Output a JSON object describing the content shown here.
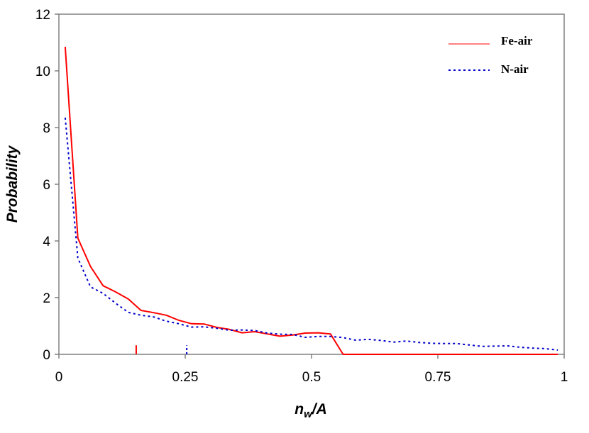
{
  "chart_data": {
    "type": "line",
    "xlabel": {
      "main": "n",
      "sub": "w",
      "rest": "/A"
    },
    "ylabel": "Probability",
    "xlim": [
      0,
      1
    ],
    "ylim": [
      0,
      12
    ],
    "xticks": [
      0,
      0.25,
      0.5,
      0.75,
      1
    ],
    "xtick_labels": [
      "0",
      "0.25",
      "0.5",
      "0.75",
      "1"
    ],
    "yticks": [
      0,
      2,
      4,
      6,
      8,
      10,
      12
    ],
    "ytick_labels": [
      "0",
      "2",
      "4",
      "6",
      "8",
      "10",
      "12"
    ],
    "grid": false,
    "legend_position": "top-right",
    "series": [
      {
        "name": "Fe-air",
        "color": "#ff0000",
        "style": "solid",
        "x": [
          0.0125,
          0.0375,
          0.0625,
          0.0875,
          0.1125,
          0.1375,
          0.1625,
          0.1875,
          0.2125,
          0.2375,
          0.2625,
          0.2875,
          0.3125,
          0.3375,
          0.3625,
          0.3875,
          0.4125,
          0.4375,
          0.4625,
          0.4875,
          0.5125,
          0.5375,
          0.5625,
          0.5875,
          0.6125,
          0.6375,
          0.6625,
          0.6875,
          0.7125,
          0.7375,
          0.7625,
          0.7875,
          0.8125,
          0.8375,
          0.8625,
          0.8875,
          0.9125,
          0.9375,
          0.9625,
          0.9875
        ],
        "y": [
          10.85,
          4.1,
          3.1,
          2.42,
          2.2,
          1.95,
          1.55,
          1.47,
          1.38,
          1.2,
          1.08,
          1.07,
          0.95,
          0.88,
          0.76,
          0.8,
          0.72,
          0.64,
          0.68,
          0.75,
          0.76,
          0.72,
          0,
          0,
          0,
          0,
          0,
          0,
          0,
          0,
          0,
          0,
          0,
          0,
          0,
          0,
          0,
          0,
          0,
          0
        ]
      },
      {
        "name": "N-air",
        "color": "#0000cc",
        "style": "dotted",
        "x": [
          0.0125,
          0.0375,
          0.0625,
          0.0875,
          0.1125,
          0.1375,
          0.1625,
          0.1875,
          0.2125,
          0.2375,
          0.2625,
          0.2875,
          0.3125,
          0.3375,
          0.3625,
          0.3875,
          0.4125,
          0.4375,
          0.4625,
          0.4875,
          0.5125,
          0.5375,
          0.5625,
          0.5875,
          0.6125,
          0.6375,
          0.6625,
          0.6875,
          0.7125,
          0.7375,
          0.7625,
          0.7875,
          0.8125,
          0.8375,
          0.8625,
          0.8875,
          0.9125,
          0.9375,
          0.9625,
          0.9875
        ],
        "y": [
          8.35,
          3.4,
          2.38,
          2.15,
          1.8,
          1.48,
          1.38,
          1.32,
          1.17,
          1.08,
          0.96,
          0.97,
          0.92,
          0.85,
          0.86,
          0.84,
          0.75,
          0.71,
          0.7,
          0.6,
          0.63,
          0.63,
          0.59,
          0.5,
          0.53,
          0.49,
          0.43,
          0.47,
          0.42,
          0.39,
          0.38,
          0.38,
          0.33,
          0.28,
          0.29,
          0.3,
          0.25,
          0.22,
          0.2,
          0.15
        ]
      }
    ],
    "markers": [
      {
        "series": "Fe-air",
        "x": 0.153,
        "height": 0.32
      },
      {
        "series": "N-air",
        "x": 0.253,
        "height": 0.32
      }
    ]
  }
}
